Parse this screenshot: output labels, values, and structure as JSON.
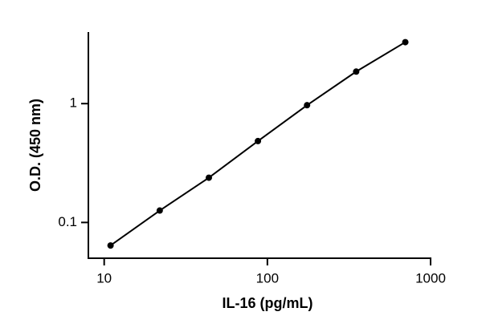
{
  "chart_data": {
    "type": "line",
    "x_label": "IL-16 (pg/mL)",
    "y_label": "O.D. (450 nm)",
    "x": [
      10.94,
      21.9,
      43.8,
      87.5,
      175,
      350,
      700
    ],
    "series": [
      {
        "color": "#000000",
        "values": [
          0.064,
          0.126,
          0.238,
          0.484,
          0.97,
          1.86,
          3.29
        ]
      }
    ],
    "xscale": "log",
    "yscale": "log",
    "xlim": [
      8,
      1000
    ],
    "ylim": [
      0.05,
      4
    ],
    "xticks": [
      10,
      100,
      1000
    ],
    "yticks": [
      0.1,
      1
    ],
    "grid": false
  }
}
